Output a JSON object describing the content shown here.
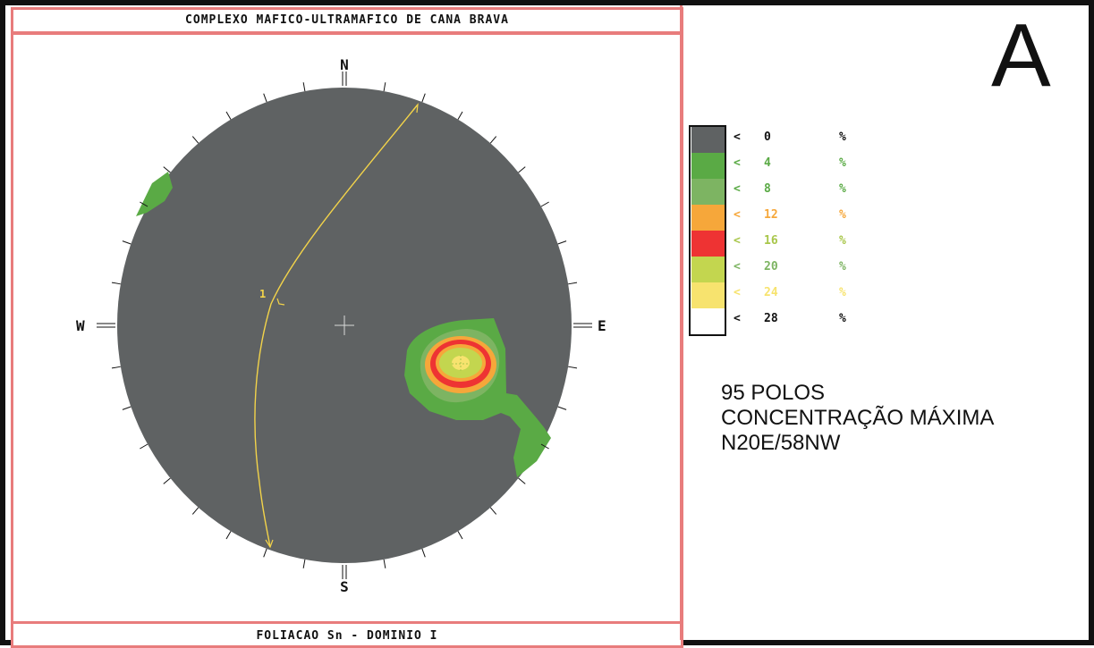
{
  "header": {
    "title": "COMPLEXO MAFICO-ULTRAMAFICO DE CANA BRAVA"
  },
  "footer": {
    "caption": "FOLIACAO Sn   - DOMINIO I"
  },
  "panel_label": "A",
  "compass": {
    "north": "N",
    "south": "S",
    "east": "E",
    "west": "W"
  },
  "contour_label": "1",
  "legend": {
    "items": [
      {
        "value": "0",
        "color": "#5f6263",
        "text_color": "#111111"
      },
      {
        "value": "4",
        "color": "#5aaa45",
        "text_color": "#5aaa45"
      },
      {
        "value": "8",
        "color": "#7db462",
        "text_color": "#5aaa45"
      },
      {
        "value": "12",
        "color": "#f6a73a",
        "text_color": "#f6a73a"
      },
      {
        "value": "16",
        "color": "#ee3333",
        "text_color": "#a8c64a"
      },
      {
        "value": "20",
        "color": "#c3d64f",
        "text_color": "#7db462"
      },
      {
        "value": "24",
        "color": "#f7e36e",
        "text_color": "#f7e36e"
      },
      {
        "value": "28",
        "color": "#ffffff",
        "text_color": "#111111"
      }
    ],
    "less_than": "<",
    "percent": "%"
  },
  "info": {
    "line1": "95 POLOS",
    "line2": "CONCENTRAÇÃO MÁXIMA",
    "line3": "N20E/58NW"
  },
  "colors": {
    "frame": "#111111",
    "pink_border": "#e87c7c",
    "net_fill": "#5f6263",
    "great_circle": "#f2d34a"
  }
}
